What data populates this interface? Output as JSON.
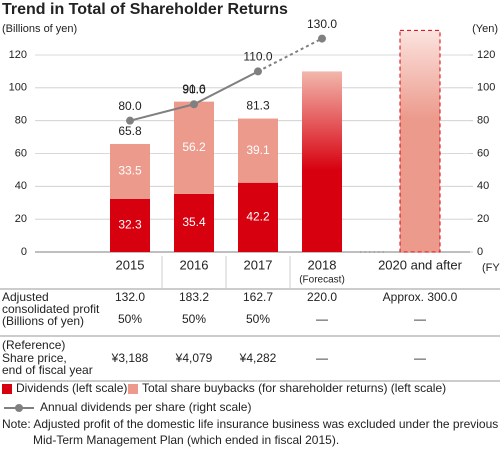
{
  "chart_data": {
    "type": "bar_line",
    "title": "Trend in Total of Shareholder Returns",
    "y_label": "(Billions of yen)",
    "y2_label": "(Yen)",
    "x_unit": "(FY)",
    "categories": [
      "2015",
      "2016",
      "2017",
      "2018",
      "2020 and after"
    ],
    "category_notes": [
      null,
      null,
      null,
      "(Forecast)",
      null
    ],
    "series": [
      {
        "name": "Dividends (left scale)",
        "color": "#d7000f",
        "values": [
          32.3,
          35.4,
          42.2,
          null,
          null
        ]
      },
      {
        "name": "Total share buybacks (for shareholder returns) (left scale)",
        "color": "#ec9a8c",
        "values": [
          33.5,
          56.2,
          39.1,
          null,
          null
        ]
      },
      {
        "name": "Annual dividends per share (right scale)",
        "color": "#808080",
        "axis": "y2",
        "values": [
          80,
          90,
          110,
          130,
          null
        ],
        "value_labels": [
          "80.0",
          "90.0",
          "110.0",
          "130.0",
          null
        ],
        "forecast_from": 3
      }
    ],
    "totals": [
      65.8,
      91.6,
      81.3,
      null,
      null
    ],
    "forecast_values": [
      null,
      null,
      null,
      110,
      135
    ],
    "forecast_styles": [
      null,
      null,
      null,
      "gradient",
      "dashed"
    ],
    "ylim": [
      0,
      120
    ],
    "yticks": [
      0,
      20,
      40,
      60,
      80,
      100,
      120
    ],
    "y2lim": [
      0,
      120
    ],
    "y2ticks": [
      0,
      20,
      40,
      60,
      80,
      100,
      120
    ],
    "grid": true
  },
  "table": {
    "rows": [
      {
        "label": [
          "Adjusted",
          "consolidated profit"
        ],
        "values": [
          "132.0",
          "183.2",
          "162.7",
          "220.0",
          "Approx. 300.0"
        ]
      },
      {
        "label": [
          "(Billions of yen)"
        ],
        "values": [
          "50%",
          "50%",
          "50%",
          "—",
          "—"
        ]
      },
      {
        "label": [
          "(Reference)",
          "Share price,",
          "end of fiscal year"
        ],
        "values": [
          "¥3,188",
          "¥4,079",
          "¥4,282",
          "—",
          "—"
        ]
      }
    ]
  },
  "note": [
    "Note: Adjusted profit of the domestic life insurance business was excluded under the previous",
    "Mid-Term Management Plan (which ended in fiscal 2015)."
  ]
}
